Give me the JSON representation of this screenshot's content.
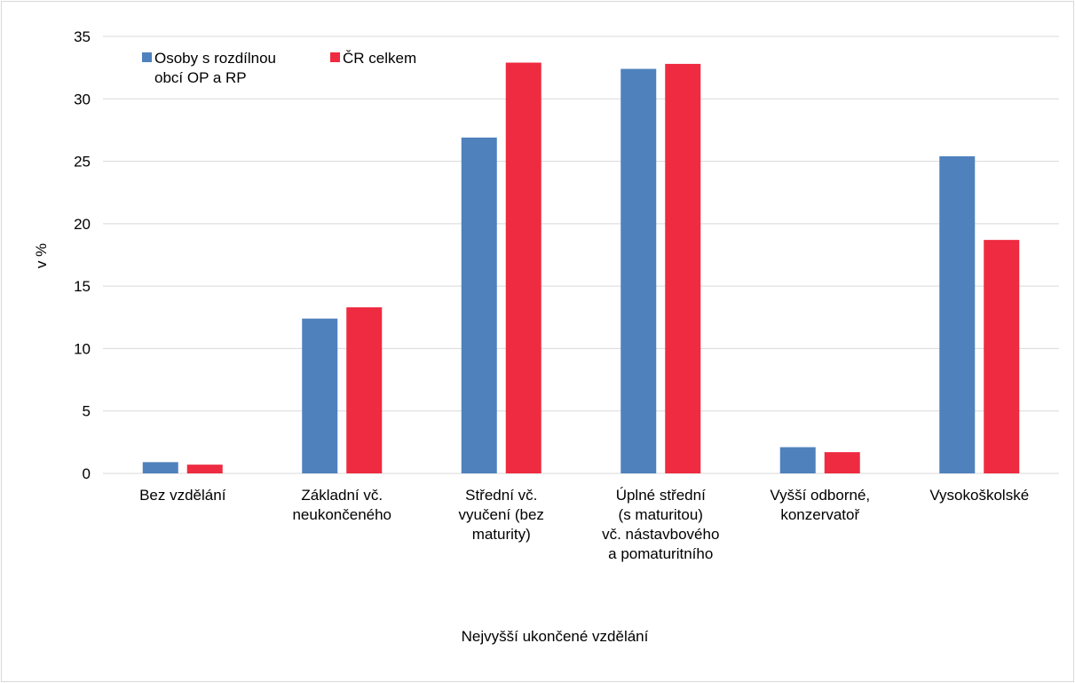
{
  "chart_data": {
    "type": "bar",
    "categories": [
      [
        "Bez vzdělání"
      ],
      [
        "Základní vč.",
        "neukončeného"
      ],
      [
        "Střední vč.",
        "vyučení (bez",
        "maturity)"
      ],
      [
        "Úplné střední",
        "(s maturitou)",
        "vč. nástavbového",
        "a pomaturitního"
      ],
      [
        "Vyšší odborné,",
        "konzervatoř"
      ],
      [
        "Vysokoškolské"
      ]
    ],
    "series": [
      {
        "name": [
          "Osoby s rozdílnou",
          "obcí OP a RP"
        ],
        "color": "#4f81bd",
        "values": [
          0.9,
          12.4,
          26.9,
          32.4,
          2.1,
          25.4
        ]
      },
      {
        "name": [
          "ČR celkem"
        ],
        "color": "#ee2b40",
        "values": [
          0.7,
          13.3,
          32.9,
          32.8,
          1.7,
          18.7
        ]
      }
    ],
    "xlabel": "Nejvyšší ukončené vzdělání",
    "ylabel": "v %",
    "ylim": [
      0,
      35
    ],
    "yticks": [
      "0",
      "5",
      "10",
      "15",
      "20",
      "25",
      "30",
      "35"
    ],
    "grid": true,
    "legend_position": "top-left"
  }
}
